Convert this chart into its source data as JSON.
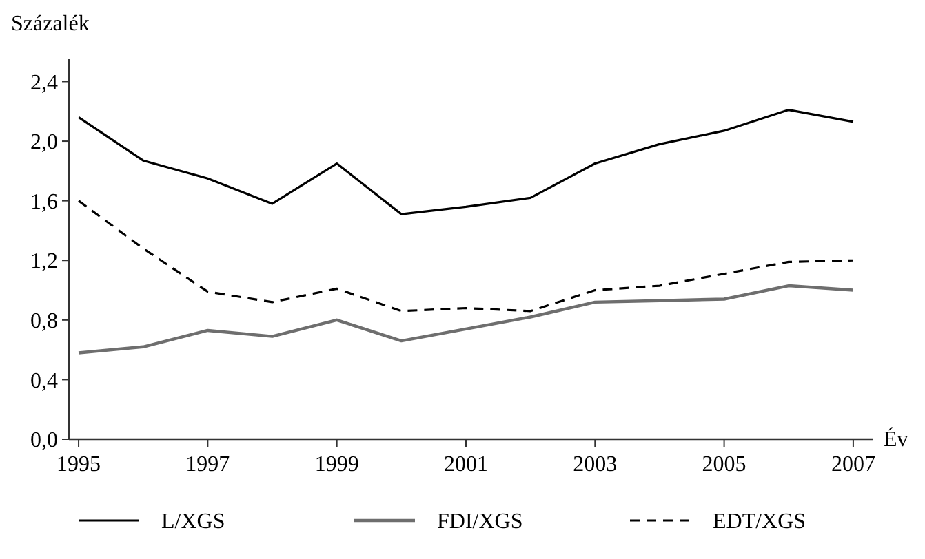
{
  "chart_data": {
    "type": "line",
    "xlabel": "Év",
    "ylabel": "Százalék",
    "x": [
      1995,
      1996,
      1997,
      1998,
      1999,
      2000,
      2001,
      2002,
      2003,
      2004,
      2005,
      2006,
      2007
    ],
    "series": [
      {
        "name": "L/XGS",
        "color": "#000000",
        "line_style": "solid",
        "values": [
          2.16,
          1.87,
          1.75,
          1.58,
          1.85,
          1.51,
          1.56,
          1.62,
          1.85,
          1.98,
          2.07,
          2.21,
          2.13
        ]
      },
      {
        "name": "FDI/XGS",
        "color": "#6e6e6e",
        "line_style": "solid",
        "values": [
          0.58,
          0.62,
          0.73,
          0.69,
          0.8,
          0.66,
          0.74,
          0.82,
          0.92,
          0.93,
          0.94,
          1.03,
          1.0
        ]
      },
      {
        "name": "EDT/XGS",
        "color": "#000000",
        "line_style": "dashed",
        "values": [
          1.6,
          1.28,
          0.99,
          0.92,
          1.01,
          0.86,
          0.88,
          0.86,
          1.0,
          1.03,
          1.11,
          1.19,
          1.2
        ]
      }
    ],
    "xlim": [
      1994.85,
      2007.3
    ],
    "xticks": [
      1995,
      1997,
      1999,
      2001,
      2003,
      2005,
      2007
    ],
    "ylim": [
      0,
      2.55
    ],
    "yticks": [
      {
        "value": 0,
        "label": "0,0"
      },
      {
        "value": 0.4,
        "label": "0,4"
      },
      {
        "value": 0.8,
        "label": "0,8"
      },
      {
        "value": 1.2,
        "label": "1,2"
      },
      {
        "value": 1.6,
        "label": "1,6"
      },
      {
        "value": 2.0,
        "label": "2,0"
      },
      {
        "value": 2.4,
        "label": "2,4"
      }
    ],
    "grid": false,
    "legend": "bottom",
    "marker": "none"
  }
}
